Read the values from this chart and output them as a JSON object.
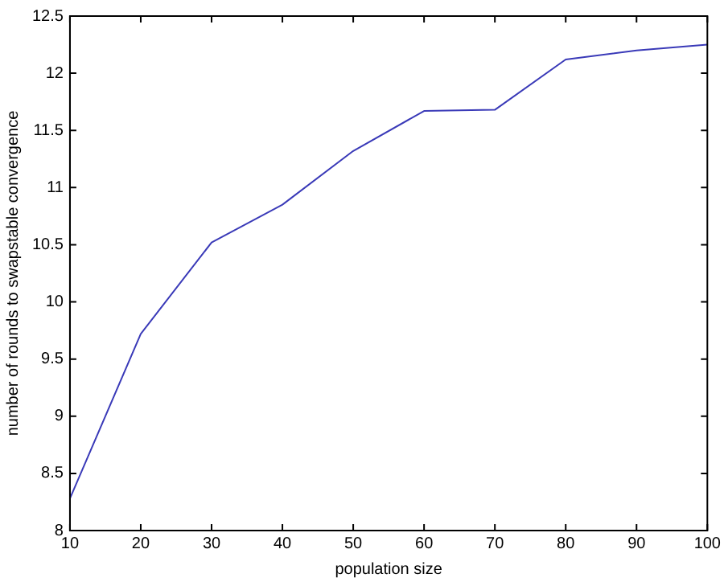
{
  "chart_data": {
    "type": "line",
    "xlabel": "population size",
    "ylabel": "number of rounds to swapstable convergence",
    "x": [
      10,
      20,
      30,
      40,
      50,
      60,
      70,
      80,
      90,
      100
    ],
    "series": [
      {
        "color": "#3a3ab8",
        "values": [
          8.28,
          9.72,
          10.52,
          10.85,
          11.32,
          11.67,
          11.68,
          12.12,
          12.2,
          12.25
        ]
      }
    ],
    "xlim": [
      10,
      100
    ],
    "xticks": [
      10,
      20,
      30,
      40,
      50,
      60,
      70,
      80,
      90,
      100
    ],
    "ylim": [
      8,
      12.5
    ],
    "yticks": [
      8,
      8.5,
      9,
      9.5,
      10,
      10.5,
      11,
      11.5,
      12,
      12.5
    ],
    "grid": false,
    "legend": false,
    "marker": "none",
    "line_style": "solid"
  }
}
